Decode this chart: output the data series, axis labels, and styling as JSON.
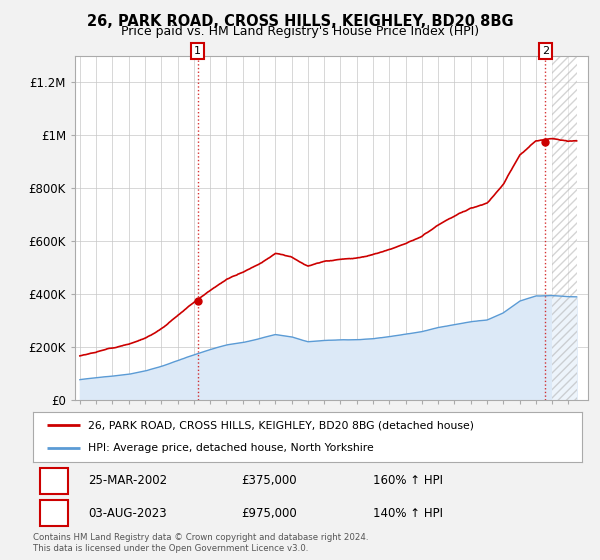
{
  "title": "26, PARK ROAD, CROSS HILLS, KEIGHLEY, BD20 8BG",
  "subtitle": "Price paid vs. HM Land Registry's House Price Index (HPI)",
  "ylim": [
    0,
    1300000
  ],
  "xlim_start": 1994.7,
  "xlim_end": 2026.2,
  "yticks": [
    0,
    200000,
    400000,
    600000,
    800000,
    1000000,
    1200000
  ],
  "ytick_labels": [
    "£0",
    "£200K",
    "£400K",
    "£600K",
    "£800K",
    "£1M",
    "£1.2M"
  ],
  "xticks": [
    1995,
    1996,
    1997,
    1998,
    1999,
    2000,
    2001,
    2002,
    2003,
    2004,
    2005,
    2006,
    2007,
    2008,
    2009,
    2010,
    2011,
    2012,
    2013,
    2014,
    2015,
    2016,
    2017,
    2018,
    2019,
    2020,
    2021,
    2022,
    2023,
    2024,
    2025
  ],
  "hpi_line_color": "#5b9bd5",
  "hpi_fill_color": "#dce9f7",
  "price_line_color": "#cc0000",
  "marker_color": "#cc0000",
  "annotation_box_color": "#cc0000",
  "transaction1_date": "25-MAR-2002",
  "transaction1_price": 375000,
  "transaction1_hpi": "160% ↑ HPI",
  "transaction1_x": 2002.23,
  "transaction1_y": 375000,
  "transaction2_date": "03-AUG-2023",
  "transaction2_price": 975000,
  "transaction2_hpi": "140% ↑ HPI",
  "transaction2_x": 2023.58,
  "transaction2_y": 975000,
  "legend_label1": "26, PARK ROAD, CROSS HILLS, KEIGHLEY, BD20 8BG (detached house)",
  "legend_label2": "HPI: Average price, detached house, North Yorkshire",
  "footer_text": "Contains HM Land Registry data © Crown copyright and database right 2024.\nThis data is licensed under the Open Government Licence v3.0.",
  "bg_color": "#f2f2f2",
  "plot_bg_color": "#ffffff",
  "grid_color": "#c8c8c8",
  "hatch_start": 2024.0,
  "hatch_color": "#aaaaaa"
}
